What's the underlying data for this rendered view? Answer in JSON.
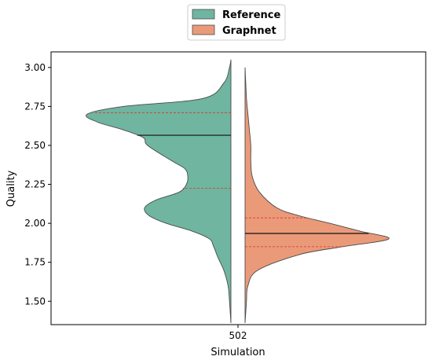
{
  "chart_data": {
    "type": "violin",
    "split": true,
    "categories": [
      "502"
    ],
    "xlabel": "Simulation",
    "ylabel": "Quality",
    "ylim": [
      1.35,
      3.1
    ],
    "yticks": [
      1.5,
      1.75,
      2.0,
      2.25,
      2.5,
      2.75,
      3.0
    ],
    "yticklabels": [
      "1.50",
      "1.75",
      "2.00",
      "2.25",
      "2.50",
      "2.75",
      "3.00"
    ],
    "legend": {
      "placement": "top-center",
      "entries": [
        "Reference",
        "Graphnet"
      ]
    },
    "series": [
      {
        "name": "Reference",
        "side": "left",
        "color": "#6fb5a0",
        "range": [
          1.36,
          3.05
        ],
        "median": 2.565,
        "quartiles": [
          2.225,
          2.71
        ],
        "density": [
          [
            1.36,
            0.0
          ],
          [
            1.5,
            0.01
          ],
          [
            1.6,
            0.02
          ],
          [
            1.7,
            0.05
          ],
          [
            1.78,
            0.09
          ],
          [
            1.85,
            0.12
          ],
          [
            1.9,
            0.15
          ],
          [
            1.95,
            0.27
          ],
          [
            2.0,
            0.45
          ],
          [
            2.05,
            0.57
          ],
          [
            2.1,
            0.6
          ],
          [
            2.15,
            0.52
          ],
          [
            2.2,
            0.36
          ],
          [
            2.25,
            0.31
          ],
          [
            2.3,
            0.3
          ],
          [
            2.35,
            0.32
          ],
          [
            2.4,
            0.41
          ],
          [
            2.5,
            0.58
          ],
          [
            2.55,
            0.61
          ],
          [
            2.6,
            0.75
          ],
          [
            2.65,
            0.93
          ],
          [
            2.7,
            1.0
          ],
          [
            2.75,
            0.75
          ],
          [
            2.8,
            0.2
          ],
          [
            2.9,
            0.05
          ],
          [
            3.0,
            0.01
          ],
          [
            3.05,
            0.0
          ]
        ]
      },
      {
        "name": "Graphnet",
        "side": "right",
        "color": "#ea9a79",
        "range": [
          1.36,
          3.0
        ],
        "median": 1.935,
        "quartiles": [
          1.85,
          2.035
        ],
        "density": [
          [
            1.36,
            0.0
          ],
          [
            1.5,
            0.01
          ],
          [
            1.6,
            0.02
          ],
          [
            1.7,
            0.09
          ],
          [
            1.8,
            0.38
          ],
          [
            1.85,
            0.68
          ],
          [
            1.9,
            1.0
          ],
          [
            1.95,
            0.8
          ],
          [
            2.0,
            0.59
          ],
          [
            2.05,
            0.37
          ],
          [
            2.1,
            0.22
          ],
          [
            2.2,
            0.1
          ],
          [
            2.3,
            0.05
          ],
          [
            2.4,
            0.04
          ],
          [
            2.5,
            0.04
          ],
          [
            2.6,
            0.03
          ],
          [
            2.7,
            0.02
          ],
          [
            2.8,
            0.01
          ],
          [
            3.0,
            0.0
          ]
        ]
      }
    ]
  }
}
